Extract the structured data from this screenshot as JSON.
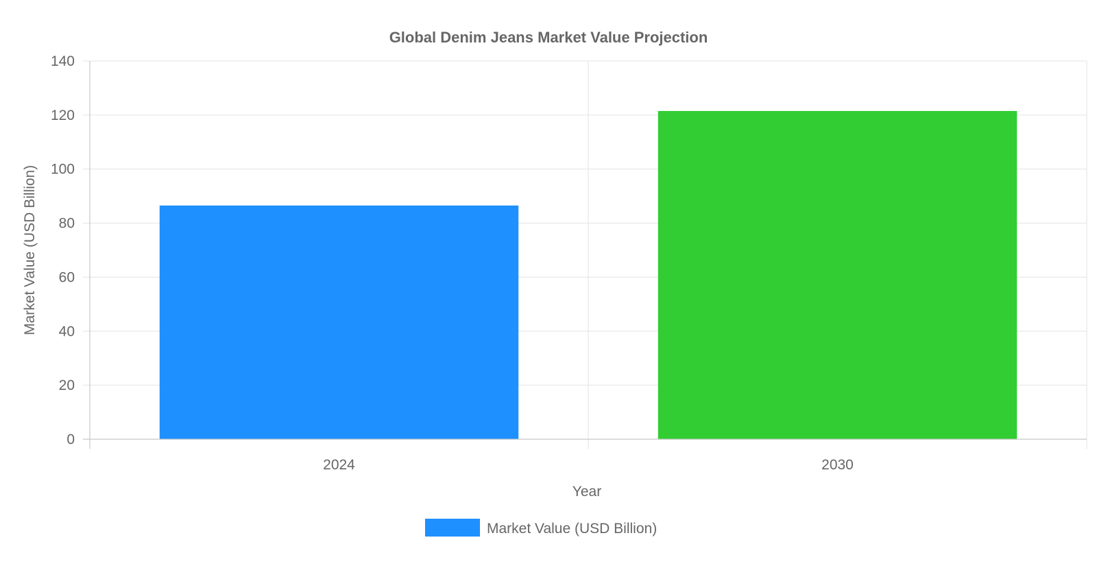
{
  "chart_data": {
    "type": "bar",
    "title": "Global Denim Jeans Market Value Projection",
    "xlabel": "Year",
    "ylabel": "Market Value (USD Billion)",
    "categories": [
      "2024",
      "2030"
    ],
    "series": [
      {
        "name": "Market Value (USD Billion)",
        "values": [
          86.5,
          121.5
        ],
        "colors": [
          "#1e90ff",
          "#32cd32"
        ]
      }
    ],
    "ylim": [
      0,
      140
    ],
    "yticks": [
      "0",
      "20",
      "40",
      "60",
      "80",
      "100",
      "120",
      "140"
    ],
    "grid": true,
    "legend_position": "bottom"
  }
}
